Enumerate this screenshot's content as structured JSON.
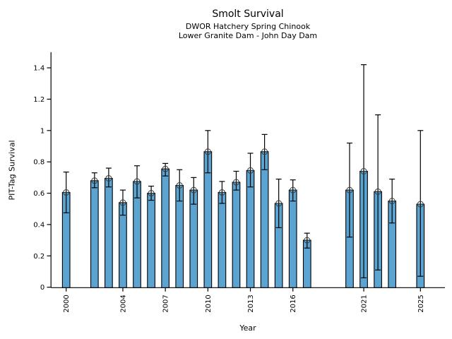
{
  "chart_data": {
    "type": "bar",
    "title": "Smolt Survival",
    "subtitle1": "DWOR Hatchery Spring Chinook",
    "subtitle2": "Lower Granite Dam - John Day Dam",
    "xlabel": "Year",
    "ylabel": "PIT-Tag Survival",
    "xlim": [
      1998.9,
      2026.8
    ],
    "ylim": [
      0,
      1.5
    ],
    "x_ticks": [
      2000,
      2004,
      2007,
      2010,
      2013,
      2016,
      2021,
      2025
    ],
    "y_ticks": [
      0,
      0.2,
      0.4,
      0.6,
      0.8,
      1,
      1.2,
      1.4
    ],
    "y_tick_labels": [
      "0",
      "0.2",
      "0.4",
      "0.6",
      "0.8",
      "1",
      "1.2",
      "1.4"
    ],
    "grid": false,
    "legend": "none",
    "bar_color": "#5BA3D0",
    "bar_edge_color": "#000000",
    "error_color": "#000000",
    "marker": "open-circle",
    "series": [
      {
        "name": "PIT-Tag Survival",
        "points": [
          {
            "year": 2000,
            "value": 0.605,
            "err_low": 0.475,
            "err_high": 0.735
          },
          {
            "year": 2002,
            "value": 0.68,
            "err_low": 0.635,
            "err_high": 0.73
          },
          {
            "year": 2003,
            "value": 0.695,
            "err_low": 0.64,
            "err_high": 0.76
          },
          {
            "year": 2004,
            "value": 0.54,
            "err_low": 0.46,
            "err_high": 0.62
          },
          {
            "year": 2005,
            "value": 0.675,
            "err_low": 0.57,
            "err_high": 0.775
          },
          {
            "year": 2006,
            "value": 0.6,
            "err_low": 0.555,
            "err_high": 0.645
          },
          {
            "year": 2007,
            "value": 0.755,
            "err_low": 0.71,
            "err_high": 0.79
          },
          {
            "year": 2008,
            "value": 0.65,
            "err_low": 0.55,
            "err_high": 0.75
          },
          {
            "year": 2009,
            "value": 0.62,
            "err_low": 0.53,
            "err_high": 0.7
          },
          {
            "year": 2010,
            "value": 0.865,
            "err_low": 0.73,
            "err_high": 1.0
          },
          {
            "year": 2011,
            "value": 0.605,
            "err_low": 0.535,
            "err_high": 0.675
          },
          {
            "year": 2012,
            "value": 0.67,
            "err_low": 0.62,
            "err_high": 0.74
          },
          {
            "year": 2013,
            "value": 0.745,
            "err_low": 0.64,
            "err_high": 0.855
          },
          {
            "year": 2014,
            "value": 0.865,
            "err_low": 0.75,
            "err_high": 0.975
          },
          {
            "year": 2015,
            "value": 0.535,
            "err_low": 0.38,
            "err_high": 0.69
          },
          {
            "year": 2016,
            "value": 0.62,
            "err_low": 0.55,
            "err_high": 0.685
          },
          {
            "year": 2017,
            "value": 0.3,
            "err_low": 0.25,
            "err_high": 0.345
          },
          {
            "year": 2020,
            "value": 0.62,
            "err_low": 0.32,
            "err_high": 0.92
          },
          {
            "year": 2021,
            "value": 0.74,
            "err_low": 0.06,
            "err_high": 1.42
          },
          {
            "year": 2022,
            "value": 0.61,
            "err_low": 0.11,
            "err_high": 1.1
          },
          {
            "year": 2023,
            "value": 0.55,
            "err_low": 0.41,
            "err_high": 0.69
          },
          {
            "year": 2025,
            "value": 0.53,
            "err_low": 0.07,
            "err_high": 1.0
          }
        ]
      }
    ]
  }
}
